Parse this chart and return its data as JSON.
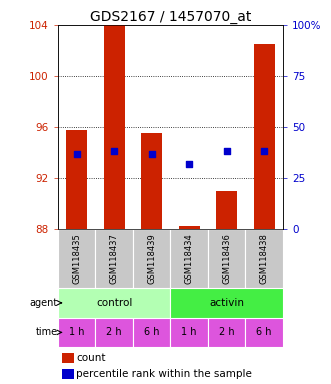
{
  "title": "GDS2167 / 1457070_at",
  "samples": [
    "GSM118435",
    "GSM118437",
    "GSM118439",
    "GSM118434",
    "GSM118436",
    "GSM118438"
  ],
  "bar_tops": [
    95.8,
    104.0,
    95.5,
    88.2,
    91.0,
    102.5
  ],
  "bar_bottom": 88.0,
  "blue_percentiles": [
    37,
    38,
    37,
    32,
    38,
    38
  ],
  "ylim": [
    88,
    104
  ],
  "yticks_left": [
    88,
    92,
    96,
    100,
    104
  ],
  "yticks_right": [
    0,
    25,
    50,
    75,
    100
  ],
  "ytick_right_labels": [
    "0",
    "25",
    "50",
    "75",
    "100%"
  ],
  "bar_color": "#cc2200",
  "dot_color": "#0000cc",
  "agent_labels": [
    "control",
    "activin"
  ],
  "agent_colors": [
    "#b3ffb3",
    "#44ee44"
  ],
  "time_labels": [
    "1 h",
    "2 h",
    "6 h",
    "1 h",
    "2 h",
    "6 h"
  ],
  "time_label_bg": "#dd55dd",
  "sample_bg": "#c8c8c8",
  "grid_color": "#888888",
  "left_tick_color": "#cc2200",
  "right_tick_color": "#0000cc",
  "title_fontsize": 10,
  "axis_fontsize": 7.5,
  "legend_fontsize": 7.5
}
